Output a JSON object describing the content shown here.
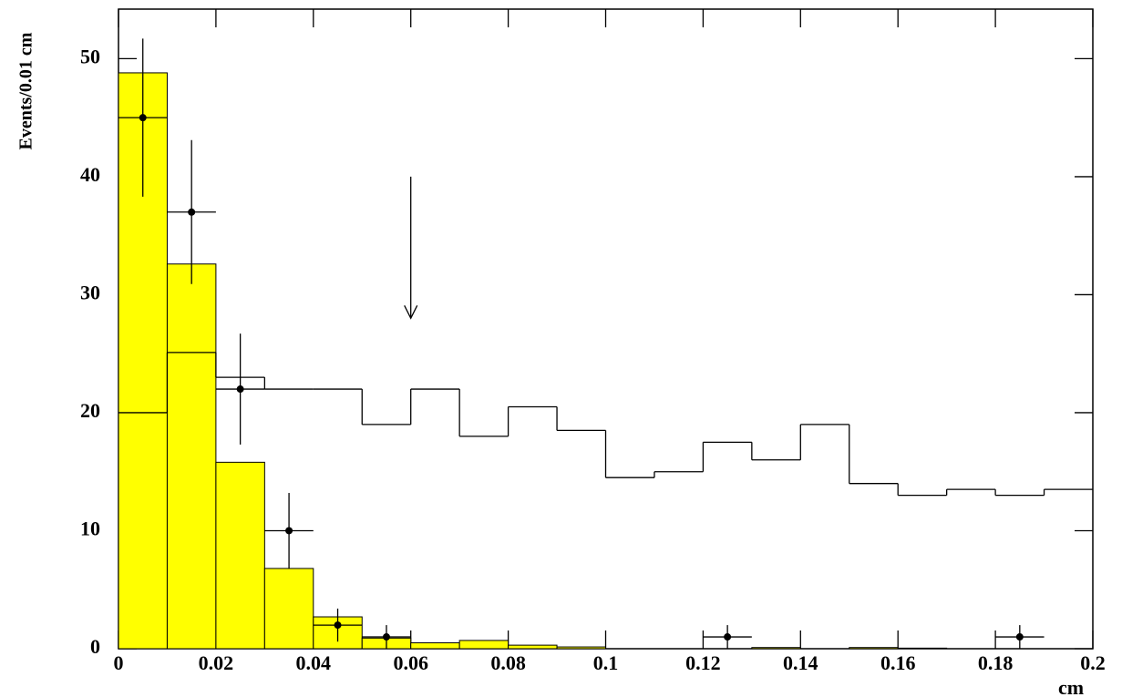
{
  "chart_data": {
    "type": "histogram",
    "y_label": "Events/0.01 cm",
    "x_label": "cm",
    "bins": [
      0,
      0.01,
      0.02,
      0.03,
      0.04,
      0.05,
      0.06,
      0.07,
      0.08,
      0.09,
      0.1,
      0.11,
      0.12,
      0.13,
      0.14,
      0.15,
      0.16,
      0.17,
      0.18,
      0.19,
      0.2
    ],
    "series": [
      {
        "color": "#ffff00",
        "fill": true,
        "values": [
          48.8,
          32.6,
          15.8,
          6.8,
          2.7,
          0.9,
          0.5,
          0.7,
          0.3,
          0.15,
          0,
          0,
          0,
          0.1,
          0,
          0.1,
          0.05,
          0,
          0,
          0
        ]
      },
      {
        "color": "#000000",
        "fill": false,
        "values": [
          20,
          25.1,
          23,
          22,
          22,
          19,
          22,
          18,
          20.5,
          18.5,
          14.5,
          15,
          17.5,
          16,
          19,
          14,
          13,
          13.5,
          13,
          13.5
        ]
      }
    ],
    "points": {
      "color": "#000000",
      "x": [
        0.005,
        0.015,
        0.025,
        0.035,
        0.045,
        0.055,
        0.125,
        0.185
      ],
      "values": [
        45,
        37,
        22,
        10,
        2,
        1,
        1,
        1
      ],
      "yerr": [
        6.7,
        6.1,
        4.7,
        3.2,
        1.4,
        1,
        1,
        1
      ],
      "xerr": [
        0.005,
        0.005,
        0.005,
        0.005,
        0.005,
        0.005,
        0.005,
        0.005
      ]
    },
    "arrow": {
      "x": 0.06,
      "y": [
        40,
        28
      ]
    },
    "xlim": [
      0,
      0.2
    ],
    "xticks": [
      0,
      0.02,
      0.04,
      0.06,
      0.08,
      0.1,
      0.12,
      0.14,
      0.16,
      0.18,
      0.2
    ],
    "ylim": [
      0,
      54.2
    ],
    "yticks": [
      0,
      10,
      20,
      30,
      40,
      50
    ]
  }
}
